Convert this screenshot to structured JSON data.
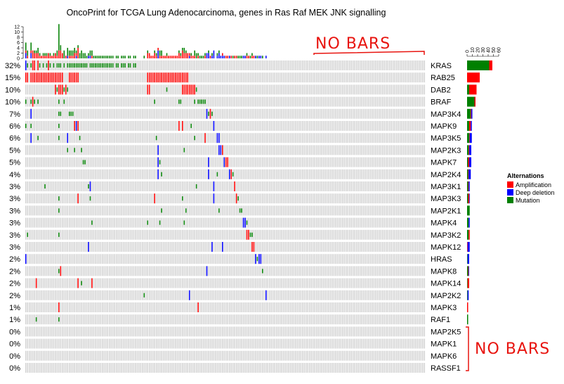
{
  "chart_data": {
    "type": "heatmap",
    "title": "OncoPrint for TCGA Lung Adenocarcinoma, genes in Ras Raf MEK JNK signalling",
    "colors": {
      "background": "#d3d3d3",
      "Amplification": "#ff0000",
      "Deep deletion": "#0000ff",
      "Mutation": "#008000"
    },
    "n_samples": 230,
    "legend": {
      "title": "Alternations",
      "position": "right",
      "entries": [
        "Amplification",
        "Deep deletion",
        "Mutation"
      ]
    },
    "top_axis": {
      "ticks": [
        "12",
        "10",
        "8",
        "6",
        "4",
        "2",
        "0"
      ],
      "max": 12
    },
    "right_axis": {
      "ticks": [
        "0",
        "10",
        "20",
        "30",
        "40",
        "50",
        "60"
      ],
      "max": 60
    },
    "genes": [
      {
        "name": "KRAS",
        "pct": "32%",
        "amp": 6,
        "del": 0,
        "mut": 42
      },
      {
        "name": "RAB25",
        "pct": "15%",
        "amp": 24,
        "del": 0,
        "mut": 0
      },
      {
        "name": "DAB2",
        "pct": "10%",
        "amp": 14,
        "del": 0,
        "mut": 4
      },
      {
        "name": "BRAF",
        "pct": "10%",
        "amp": 2,
        "del": 0,
        "mut": 14
      },
      {
        "name": "MAP3K4",
        "pct": "7%",
        "amp": 1,
        "del": 2,
        "mut": 7
      },
      {
        "name": "MAPK9",
        "pct": "6%",
        "amp": 3,
        "del": 2,
        "mut": 4
      },
      {
        "name": "MAP3K5",
        "pct": "6%",
        "amp": 1,
        "del": 4,
        "mut": 4
      },
      {
        "name": "MAP2K3",
        "pct": "5%",
        "amp": 1,
        "del": 4,
        "mut": 3
      },
      {
        "name": "MAPK7",
        "pct": "5%",
        "amp": 2,
        "del": 4,
        "mut": 2
      },
      {
        "name": "MAP2K4",
        "pct": "4%",
        "amp": 1,
        "del": 4,
        "mut": 2
      },
      {
        "name": "MAP3K1",
        "pct": "3%",
        "amp": 1,
        "del": 2,
        "mut": 2
      },
      {
        "name": "MAP3K3",
        "pct": "3%",
        "amp": 2,
        "del": 1,
        "mut": 2
      },
      {
        "name": "MAP2K1",
        "pct": "3%",
        "amp": 0,
        "del": 0,
        "mut": 5
      },
      {
        "name": "MAPK4",
        "pct": "3%",
        "amp": 0,
        "del": 2,
        "mut": 3
      },
      {
        "name": "MAP3K2",
        "pct": "3%",
        "amp": 2,
        "del": 0,
        "mut": 3
      },
      {
        "name": "MAPK12",
        "pct": "3%",
        "amp": 1,
        "del": 4,
        "mut": 0
      },
      {
        "name": "HRAS",
        "pct": "2%",
        "amp": 0,
        "del": 3,
        "mut": 1
      },
      {
        "name": "MAPK8",
        "pct": "2%",
        "amp": 1,
        "del": 1,
        "mut": 2
      },
      {
        "name": "MAPK14",
        "pct": "2%",
        "amp": 3,
        "del": 0,
        "mut": 1
      },
      {
        "name": "MAP2K2",
        "pct": "2%",
        "amp": 0,
        "del": 2,
        "mut": 1
      },
      {
        "name": "MAPK3",
        "pct": "1%",
        "amp": 2,
        "del": 0,
        "mut": 0
      },
      {
        "name": "RAF1",
        "pct": "1%",
        "amp": 0,
        "del": 0,
        "mut": 2
      },
      {
        "name": "MAP2K5",
        "pct": "0%",
        "amp": 0,
        "del": 0,
        "mut": 0
      },
      {
        "name": "MAPK1",
        "pct": "0%",
        "amp": 0,
        "del": 0,
        "mut": 0
      },
      {
        "name": "MAPK6",
        "pct": "0%",
        "amp": 0,
        "del": 0,
        "mut": 0
      },
      {
        "name": "RASSF1",
        "pct": "0%",
        "amp": 0,
        "del": 0,
        "mut": 0
      }
    ],
    "cells": [
      [
        0,
        0,
        "mut"
      ],
      [
        0,
        0,
        "del"
      ],
      [
        0,
        1,
        "mut"
      ],
      [
        0,
        3,
        "mut"
      ],
      [
        0,
        4,
        "amp"
      ],
      [
        0,
        5,
        "amp"
      ],
      [
        0,
        7,
        "amp"
      ],
      [
        0,
        8,
        "mut"
      ],
      [
        0,
        10,
        "mut"
      ],
      [
        0,
        12,
        "mut"
      ],
      [
        0,
        13,
        "amp"
      ],
      [
        0,
        14,
        "mut"
      ],
      [
        0,
        16,
        "mut"
      ],
      [
        0,
        18,
        "mut"
      ],
      [
        0,
        19,
        "mut"
      ],
      [
        0,
        20,
        "mut"
      ],
      [
        0,
        22,
        "mut"
      ],
      [
        0,
        24,
        "mut"
      ],
      [
        0,
        25,
        "mut"
      ],
      [
        0,
        26,
        "mut"
      ],
      [
        0,
        27,
        "mut"
      ],
      [
        0,
        28,
        "mut"
      ],
      [
        0,
        29,
        "mut"
      ],
      [
        0,
        30,
        "mut"
      ],
      [
        0,
        31,
        "mut"
      ],
      [
        0,
        32,
        "mut"
      ],
      [
        0,
        33,
        "mut"
      ],
      [
        0,
        34,
        "mut"
      ],
      [
        0,
        35,
        "mut"
      ],
      [
        0,
        37,
        "mut"
      ],
      [
        0,
        38,
        "mut"
      ],
      [
        0,
        39,
        "mut"
      ],
      [
        0,
        40,
        "mut"
      ],
      [
        0,
        41,
        "mut"
      ],
      [
        0,
        42,
        "mut"
      ],
      [
        0,
        43,
        "mut"
      ],
      [
        0,
        44,
        "mut"
      ],
      [
        0,
        45,
        "mut"
      ],
      [
        0,
        46,
        "mut"
      ],
      [
        0,
        47,
        "mut"
      ],
      [
        0,
        48,
        "mut"
      ],
      [
        0,
        49,
        "mut"
      ],
      [
        0,
        50,
        "mut"
      ],
      [
        0,
        52,
        "mut"
      ],
      [
        0,
        53,
        "mut"
      ],
      [
        0,
        55,
        "mut"
      ],
      [
        0,
        56,
        "mut"
      ],
      [
        0,
        57,
        "mut"
      ],
      [
        0,
        59,
        "mut"
      ],
      [
        0,
        60,
        "mut"
      ],
      [
        0,
        62,
        "mut"
      ],
      [
        0,
        63,
        "mut"
      ],
      [
        1,
        0,
        "amp"
      ],
      [
        1,
        1,
        "amp"
      ],
      [
        1,
        3,
        "amp"
      ],
      [
        1,
        4,
        "amp"
      ],
      [
        1,
        5,
        "amp"
      ],
      [
        1,
        6,
        "amp"
      ],
      [
        1,
        7,
        "amp"
      ],
      [
        1,
        8,
        "amp"
      ],
      [
        1,
        9,
        "amp"
      ],
      [
        1,
        10,
        "amp"
      ],
      [
        1,
        11,
        "amp"
      ],
      [
        1,
        12,
        "amp"
      ],
      [
        1,
        13,
        "amp"
      ],
      [
        1,
        14,
        "amp"
      ],
      [
        1,
        15,
        "amp"
      ],
      [
        1,
        16,
        "amp"
      ],
      [
        1,
        17,
        "amp"
      ],
      [
        1,
        18,
        "amp"
      ],
      [
        1,
        19,
        "amp"
      ],
      [
        1,
        20,
        "amp"
      ],
      [
        1,
        21,
        "amp"
      ],
      [
        1,
        25,
        "amp"
      ],
      [
        1,
        26,
        "amp"
      ],
      [
        1,
        27,
        "amp"
      ],
      [
        1,
        28,
        "amp"
      ],
      [
        1,
        29,
        "amp"
      ],
      [
        1,
        30,
        "amp"
      ],
      [
        1,
        70,
        "amp"
      ],
      [
        1,
        71,
        "amp"
      ],
      [
        1,
        72,
        "amp"
      ],
      [
        1,
        73,
        "amp"
      ],
      [
        1,
        74,
        "amp"
      ],
      [
        1,
        75,
        "amp"
      ],
      [
        1,
        76,
        "amp"
      ],
      [
        1,
        77,
        "amp"
      ],
      [
        1,
        78,
        "amp"
      ],
      [
        1,
        79,
        "amp"
      ],
      [
        1,
        80,
        "amp"
      ],
      [
        1,
        81,
        "amp"
      ],
      [
        1,
        82,
        "amp"
      ],
      [
        1,
        83,
        "amp"
      ],
      [
        1,
        84,
        "amp"
      ],
      [
        1,
        85,
        "amp"
      ],
      [
        1,
        86,
        "amp"
      ],
      [
        1,
        87,
        "amp"
      ],
      [
        1,
        88,
        "amp"
      ],
      [
        1,
        89,
        "amp"
      ],
      [
        1,
        90,
        "amp"
      ],
      [
        1,
        91,
        "amp"
      ],
      [
        1,
        92,
        "amp"
      ],
      [
        1,
        93,
        "amp"
      ],
      [
        2,
        17,
        "amp"
      ],
      [
        2,
        18,
        "mut"
      ],
      [
        2,
        19,
        "amp"
      ],
      [
        2,
        20,
        "amp"
      ],
      [
        2,
        21,
        "amp"
      ],
      [
        2,
        22,
        "mut"
      ],
      [
        2,
        23,
        "amp"
      ],
      [
        2,
        24,
        "mut"
      ],
      [
        2,
        70,
        "amp"
      ],
      [
        2,
        71,
        "amp"
      ],
      [
        2,
        81,
        "mut"
      ],
      [
        2,
        90,
        "amp"
      ],
      [
        2,
        91,
        "amp"
      ],
      [
        2,
        92,
        "amp"
      ],
      [
        2,
        93,
        "amp"
      ],
      [
        2,
        94,
        "amp"
      ],
      [
        2,
        95,
        "amp"
      ],
      [
        2,
        96,
        "amp"
      ],
      [
        2,
        97,
        "amp"
      ],
      [
        2,
        98,
        "mut"
      ],
      [
        3,
        0,
        "mut"
      ],
      [
        3,
        3,
        "mut"
      ],
      [
        3,
        4,
        "amp"
      ],
      [
        3,
        5,
        "mut"
      ],
      [
        3,
        7,
        "mut"
      ],
      [
        3,
        19,
        "mut"
      ],
      [
        3,
        22,
        "mut"
      ],
      [
        3,
        74,
        "mut"
      ],
      [
        3,
        88,
        "mut"
      ],
      [
        3,
        89,
        "mut"
      ],
      [
        3,
        97,
        "mut"
      ],
      [
        3,
        99,
        "mut"
      ],
      [
        3,
        100,
        "mut"
      ],
      [
        3,
        101,
        "mut"
      ],
      [
        3,
        102,
        "mut"
      ],
      [
        3,
        103,
        "mut"
      ],
      [
        4,
        3,
        "del"
      ],
      [
        4,
        19,
        "mut"
      ],
      [
        4,
        20,
        "mut"
      ],
      [
        4,
        25,
        "mut"
      ],
      [
        4,
        26,
        "mut"
      ],
      [
        4,
        27,
        "mut"
      ],
      [
        4,
        104,
        "del"
      ],
      [
        4,
        105,
        "mut"
      ],
      [
        4,
        106,
        "amp"
      ],
      [
        4,
        107,
        "mut"
      ],
      [
        5,
        0,
        "mut"
      ],
      [
        5,
        3,
        "mut"
      ],
      [
        5,
        19,
        "mut"
      ],
      [
        5,
        28,
        "amp"
      ],
      [
        5,
        29,
        "del"
      ],
      [
        5,
        30,
        "amp"
      ],
      [
        5,
        88,
        "amp"
      ],
      [
        5,
        90,
        "amp"
      ],
      [
        5,
        95,
        "mut"
      ],
      [
        5,
        108,
        "del"
      ],
      [
        6,
        3,
        "del"
      ],
      [
        6,
        7,
        "mut"
      ],
      [
        6,
        19,
        "mut"
      ],
      [
        6,
        24,
        "del"
      ],
      [
        6,
        31,
        "mut"
      ],
      [
        6,
        75,
        "mut"
      ],
      [
        6,
        97,
        "mut"
      ],
      [
        6,
        103,
        "amp"
      ],
      [
        6,
        110,
        "del"
      ],
      [
        6,
        111,
        "del"
      ],
      [
        7,
        24,
        "mut"
      ],
      [
        7,
        28,
        "mut"
      ],
      [
        7,
        32,
        "mut"
      ],
      [
        7,
        76,
        "del"
      ],
      [
        7,
        91,
        "mut"
      ],
      [
        7,
        111,
        "del"
      ],
      [
        7,
        112,
        "del"
      ],
      [
        7,
        113,
        "amp"
      ],
      [
        8,
        33,
        "mut"
      ],
      [
        8,
        34,
        "mut"
      ],
      [
        8,
        76,
        "del"
      ],
      [
        8,
        77,
        "mut"
      ],
      [
        8,
        105,
        "del"
      ],
      [
        8,
        114,
        "del"
      ],
      [
        8,
        115,
        "amp"
      ],
      [
        8,
        116,
        "amp"
      ],
      [
        9,
        76,
        "del"
      ],
      [
        9,
        78,
        "mut"
      ],
      [
        9,
        105,
        "del"
      ],
      [
        9,
        110,
        "mut"
      ],
      [
        9,
        117,
        "del"
      ],
      [
        9,
        118,
        "amp"
      ],
      [
        9,
        119,
        "mut"
      ],
      [
        10,
        11,
        "mut"
      ],
      [
        10,
        36,
        "mut"
      ],
      [
        10,
        37,
        "del"
      ],
      [
        10,
        98,
        "mut"
      ],
      [
        10,
        108,
        "del"
      ],
      [
        10,
        120,
        "amp"
      ],
      [
        11,
        19,
        "mut"
      ],
      [
        11,
        30,
        "amp"
      ],
      [
        11,
        37,
        "mut"
      ],
      [
        11,
        74,
        "amp"
      ],
      [
        11,
        90,
        "mut"
      ],
      [
        11,
        108,
        "del"
      ],
      [
        11,
        121,
        "amp"
      ],
      [
        11,
        122,
        "mut"
      ],
      [
        12,
        19,
        "mut"
      ],
      [
        12,
        78,
        "mut"
      ],
      [
        12,
        92,
        "mut"
      ],
      [
        12,
        111,
        "mut"
      ],
      [
        12,
        123,
        "mut"
      ],
      [
        12,
        124,
        "mut"
      ],
      [
        13,
        38,
        "mut"
      ],
      [
        13,
        70,
        "mut"
      ],
      [
        13,
        77,
        "mut"
      ],
      [
        13,
        91,
        "mut"
      ],
      [
        13,
        125,
        "del"
      ],
      [
        13,
        126,
        "del"
      ],
      [
        13,
        127,
        "mut"
      ],
      [
        14,
        1,
        "mut"
      ],
      [
        14,
        19,
        "mut"
      ],
      [
        14,
        127,
        "amp"
      ],
      [
        14,
        128,
        "amp"
      ],
      [
        14,
        129,
        "mut"
      ],
      [
        14,
        130,
        "mut"
      ],
      [
        15,
        36,
        "del"
      ],
      [
        15,
        107,
        "del"
      ],
      [
        15,
        113,
        "del"
      ],
      [
        15,
        130,
        "amp"
      ],
      [
        15,
        131,
        "amp"
      ],
      [
        16,
        0,
        "del"
      ],
      [
        16,
        132,
        "del"
      ],
      [
        16,
        133,
        "mut"
      ],
      [
        16,
        134,
        "del"
      ],
      [
        16,
        135,
        "del"
      ],
      [
        17,
        19,
        "mut"
      ],
      [
        17,
        20,
        "amp"
      ],
      [
        17,
        104,
        "del"
      ],
      [
        17,
        136,
        "mut"
      ],
      [
        18,
        6,
        "amp"
      ],
      [
        18,
        30,
        "amp"
      ],
      [
        18,
        32,
        "mut"
      ],
      [
        18,
        38,
        "amp"
      ],
      [
        19,
        68,
        "mut"
      ],
      [
        19,
        94,
        "del"
      ],
      [
        19,
        138,
        "del"
      ],
      [
        20,
        19,
        "amp"
      ],
      [
        20,
        99,
        "amp"
      ],
      [
        21,
        6,
        "mut"
      ],
      [
        21,
        19,
        "mut"
      ]
    ],
    "annotations": [
      "NO BARS",
      "NO BARS"
    ]
  }
}
